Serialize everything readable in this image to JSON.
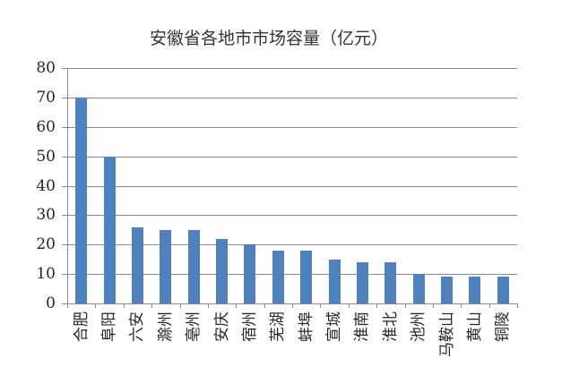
{
  "chart_data": {
    "type": "bar",
    "title": "安徽省各地市市场容量（亿元）",
    "categories": [
      "合肥",
      "阜阳",
      "六安",
      "滁州",
      "亳州",
      "安庆",
      "宿州",
      "芜湖",
      "蚌埠",
      "宣城",
      "淮南",
      "淮北",
      "池州",
      "马鞍山",
      "黄山",
      "铜陵"
    ],
    "values": [
      70,
      50,
      26,
      25,
      25,
      22,
      20,
      18,
      18,
      15,
      14,
      14,
      10,
      9,
      9,
      9
    ],
    "xlabel": "",
    "ylabel": "",
    "ylim": [
      0,
      80
    ],
    "yticks": [
      0,
      10,
      20,
      30,
      40,
      50,
      60,
      70,
      80
    ],
    "grid": true,
    "legend": "none",
    "bar_color": "#4F81BD",
    "axis_color": "#8A8A8A",
    "text_color": "#262626"
  }
}
